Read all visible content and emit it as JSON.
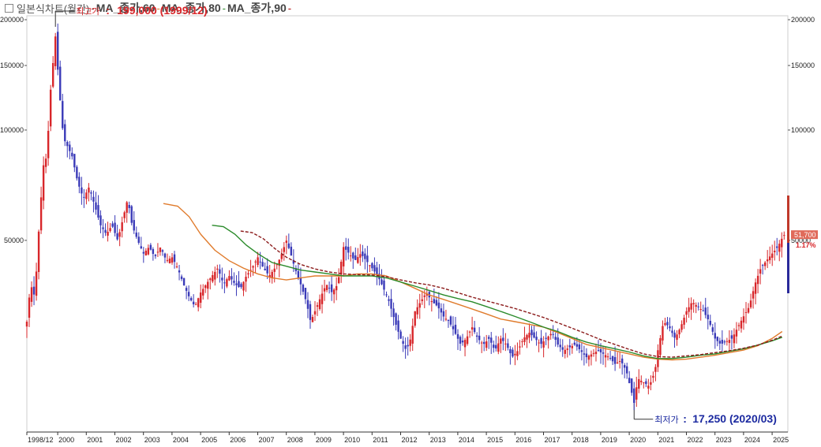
{
  "legend": {
    "title": "일본식차트(월간)",
    "items": [
      {
        "label": "MA_종가,60",
        "color": "#e07b2c"
      },
      {
        "label": "MA_종가,80",
        "color": "#2a8a2a"
      },
      {
        "label": "MA_종가,90",
        "color": "#8b1a1a"
      }
    ],
    "trailing_color": "#b00000"
  },
  "colors": {
    "up": "#d8262a",
    "down": "#3a3ab8",
    "marker": "#b00000",
    "panel": "#e8e8e8"
  },
  "chart_data": {
    "type": "candlestick",
    "title": "일본식차트(월간)",
    "y_scale": "log",
    "ylim": [
      15000,
      205000
    ],
    "y_ticks": [
      50000,
      100000,
      150000,
      200000
    ],
    "x_ticks": [
      "1998/12",
      "2000",
      "2001",
      "2002",
      "2003",
      "2004",
      "2005",
      "2006",
      "2007",
      "2008",
      "2009",
      "2010",
      "2011",
      "2012",
      "2013",
      "2014",
      "2015",
      "2016",
      "2017",
      "2018",
      "2019",
      "2020",
      "2021",
      "2022",
      "2023",
      "2024",
      "2025"
    ],
    "x_range": [
      1998.92,
      2025.55
    ],
    "last_price_label": "51,700",
    "change_label": "1.17%",
    "annotations": {
      "high": {
        "label": "최고가",
        "value": "199,000 (1999/12)",
        "x": 1999.92,
        "y": 199000
      },
      "low": {
        "label": "최저가",
        "value": "17,250 (2020/03)",
        "x": 2020.17,
        "y": 17250
      }
    },
    "price_path": [
      [
        1998.92,
        30000
      ],
      [
        1999.05,
        38000
      ],
      [
        1999.2,
        35000
      ],
      [
        1999.35,
        55000
      ],
      [
        1999.5,
        80000
      ],
      [
        1999.62,
        85000
      ],
      [
        1999.75,
        128000
      ],
      [
        1999.92,
        180000
      ],
      [
        2000.05,
        130000
      ],
      [
        2000.2,
        95000
      ],
      [
        2000.35,
        90000
      ],
      [
        2000.5,
        85000
      ],
      [
        2000.7,
        72000
      ],
      [
        2000.9,
        65000
      ],
      [
        2001.1,
        70000
      ],
      [
        2001.3,
        62000
      ],
      [
        2001.5,
        55000
      ],
      [
        2001.7,
        52000
      ],
      [
        2001.9,
        55000
      ],
      [
        2002.1,
        50000
      ],
      [
        2002.3,
        58000
      ],
      [
        2002.45,
        65000
      ],
      [
        2002.6,
        55000
      ],
      [
        2002.8,
        50000
      ],
      [
        2003.0,
        46000
      ],
      [
        2003.2,
        48000
      ],
      [
        2003.4,
        45000
      ],
      [
        2003.6,
        48000
      ],
      [
        2003.8,
        44000
      ],
      [
        2004.0,
        45000
      ],
      [
        2004.2,
        42000
      ],
      [
        2004.4,
        38000
      ],
      [
        2004.6,
        35000
      ],
      [
        2004.8,
        33000
      ],
      [
        2005.0,
        36000
      ],
      [
        2005.2,
        38000
      ],
      [
        2005.4,
        40000
      ],
      [
        2005.6,
        42000
      ],
      [
        2005.8,
        38000
      ],
      [
        2006.0,
        40000
      ],
      [
        2006.2,
        38000
      ],
      [
        2006.4,
        37000
      ],
      [
        2006.6,
        40000
      ],
      [
        2006.8,
        42000
      ],
      [
        2007.0,
        45000
      ],
      [
        2007.2,
        42000
      ],
      [
        2007.4,
        40000
      ],
      [
        2007.6,
        42000
      ],
      [
        2007.8,
        45000
      ],
      [
        2008.0,
        50000
      ],
      [
        2008.15,
        46000
      ],
      [
        2008.3,
        42000
      ],
      [
        2008.5,
        38000
      ],
      [
        2008.7,
        34000
      ],
      [
        2008.85,
        30000
      ],
      [
        2009.0,
        32000
      ],
      [
        2009.2,
        35000
      ],
      [
        2009.4,
        38000
      ],
      [
        2009.6,
        36000
      ],
      [
        2009.8,
        38000
      ],
      [
        2010.0,
        48000
      ],
      [
        2010.2,
        46000
      ],
      [
        2010.4,
        44000
      ],
      [
        2010.6,
        46000
      ],
      [
        2010.8,
        44000
      ],
      [
        2011.0,
        42000
      ],
      [
        2011.2,
        40000
      ],
      [
        2011.4,
        37000
      ],
      [
        2011.6,
        34000
      ],
      [
        2011.8,
        30000
      ],
      [
        2012.0,
        27000
      ],
      [
        2012.2,
        25000
      ],
      [
        2012.35,
        27000
      ],
      [
        2012.5,
        32000
      ],
      [
        2012.7,
        34000
      ],
      [
        2012.9,
        36000
      ],
      [
        2013.1,
        34000
      ],
      [
        2013.3,
        33000
      ],
      [
        2013.5,
        31000
      ],
      [
        2013.7,
        30000
      ],
      [
        2013.9,
        28000
      ],
      [
        2014.1,
        26000
      ],
      [
        2014.3,
        27000
      ],
      [
        2014.5,
        29000
      ],
      [
        2014.7,
        27000
      ],
      [
        2014.9,
        26000
      ],
      [
        2015.1,
        27000
      ],
      [
        2015.3,
        25000
      ],
      [
        2015.5,
        27000
      ],
      [
        2015.7,
        26000
      ],
      [
        2015.9,
        24000
      ],
      [
        2016.1,
        25000
      ],
      [
        2016.3,
        27000
      ],
      [
        2016.5,
        28000
      ],
      [
        2016.7,
        27000
      ],
      [
        2016.9,
        26000
      ],
      [
        2017.1,
        27000
      ],
      [
        2017.3,
        28000
      ],
      [
        2017.5,
        26000
      ],
      [
        2017.7,
        25000
      ],
      [
        2017.9,
        25500
      ],
      [
        2018.1,
        26000
      ],
      [
        2018.3,
        25000
      ],
      [
        2018.5,
        24000
      ],
      [
        2018.7,
        24500
      ],
      [
        2018.9,
        25000
      ],
      [
        2019.1,
        24500
      ],
      [
        2019.3,
        24000
      ],
      [
        2019.5,
        23000
      ],
      [
        2019.7,
        23500
      ],
      [
        2019.9,
        22000
      ],
      [
        2020.1,
        19000
      ],
      [
        2020.17,
        18000
      ],
      [
        2020.3,
        21000
      ],
      [
        2020.5,
        20500
      ],
      [
        2020.7,
        20000
      ],
      [
        2020.9,
        22000
      ],
      [
        2021.0,
        25000
      ],
      [
        2021.2,
        30000
      ],
      [
        2021.4,
        29000
      ],
      [
        2021.6,
        27000
      ],
      [
        2021.8,
        29000
      ],
      [
        2022.0,
        32000
      ],
      [
        2022.2,
        34000
      ],
      [
        2022.4,
        33000
      ],
      [
        2022.6,
        32000
      ],
      [
        2022.8,
        30000
      ],
      [
        2023.0,
        27000
      ],
      [
        2023.2,
        26000
      ],
      [
        2023.4,
        26500
      ],
      [
        2023.6,
        27000
      ],
      [
        2023.8,
        29000
      ],
      [
        2024.0,
        31000
      ],
      [
        2024.2,
        33000
      ],
      [
        2024.4,
        38000
      ],
      [
        2024.6,
        42000
      ],
      [
        2024.8,
        44000
      ],
      [
        2025.0,
        46000
      ],
      [
        2025.2,
        48000
      ],
      [
        2025.4,
        51700
      ]
    ],
    "series": [
      {
        "name": "MA_종가,60",
        "color": "#e07b2c",
        "dash": false,
        "points": [
          [
            2003.7,
            63000
          ],
          [
            2004.2,
            62000
          ],
          [
            2004.6,
            58000
          ],
          [
            2005.0,
            52000
          ],
          [
            2005.5,
            47000
          ],
          [
            2006.0,
            44000
          ],
          [
            2006.5,
            42000
          ],
          [
            2007.0,
            40500
          ],
          [
            2007.5,
            39500
          ],
          [
            2008.0,
            39000
          ],
          [
            2008.5,
            39500
          ],
          [
            2009.0,
            40000
          ],
          [
            2009.5,
            40000
          ],
          [
            2010.0,
            40000
          ],
          [
            2010.5,
            40500
          ],
          [
            2011.0,
            40500
          ],
          [
            2011.5,
            40000
          ],
          [
            2012.0,
            38500
          ],
          [
            2012.5,
            37000
          ],
          [
            2013.0,
            35500
          ],
          [
            2013.5,
            34500
          ],
          [
            2014.0,
            33500
          ],
          [
            2014.5,
            32500
          ],
          [
            2015.0,
            31500
          ],
          [
            2015.5,
            30500
          ],
          [
            2016.0,
            30000
          ],
          [
            2016.5,
            29500
          ],
          [
            2017.0,
            29000
          ],
          [
            2017.5,
            28000
          ],
          [
            2018.0,
            27000
          ],
          [
            2018.5,
            26000
          ],
          [
            2019.0,
            25500
          ],
          [
            2019.5,
            25000
          ],
          [
            2020.0,
            24500
          ],
          [
            2020.5,
            24000
          ],
          [
            2021.0,
            23700
          ],
          [
            2021.5,
            23600
          ],
          [
            2022.0,
            23700
          ],
          [
            2022.5,
            24000
          ],
          [
            2023.0,
            24300
          ],
          [
            2023.5,
            24700
          ],
          [
            2024.0,
            25100
          ],
          [
            2024.5,
            25800
          ],
          [
            2025.0,
            27000
          ],
          [
            2025.35,
            28200
          ]
        ]
      },
      {
        "name": "MA_종가,80",
        "color": "#2a8a2a",
        "dash": false,
        "points": [
          [
            2005.4,
            55000
          ],
          [
            2005.8,
            54500
          ],
          [
            2006.2,
            52000
          ],
          [
            2006.6,
            48500
          ],
          [
            2007.0,
            46000
          ],
          [
            2007.5,
            43500
          ],
          [
            2008.0,
            42500
          ],
          [
            2008.5,
            41500
          ],
          [
            2009.0,
            41000
          ],
          [
            2009.5,
            40500
          ],
          [
            2010.0,
            40000
          ],
          [
            2010.5,
            40000
          ],
          [
            2011.0,
            40000
          ],
          [
            2011.5,
            39500
          ],
          [
            2012.0,
            38500
          ],
          [
            2012.5,
            37500
          ],
          [
            2013.0,
            36500
          ],
          [
            2013.5,
            35500
          ],
          [
            2014.0,
            34700
          ],
          [
            2014.5,
            34000
          ],
          [
            2015.0,
            33000
          ],
          [
            2015.5,
            32000
          ],
          [
            2016.0,
            31000
          ],
          [
            2016.5,
            30000
          ],
          [
            2017.0,
            29000
          ],
          [
            2017.5,
            28200
          ],
          [
            2018.0,
            27200
          ],
          [
            2018.5,
            26400
          ],
          [
            2019.0,
            25800
          ],
          [
            2019.5,
            25300
          ],
          [
            2020.0,
            24800
          ],
          [
            2020.5,
            24200
          ],
          [
            2021.0,
            23800
          ],
          [
            2021.5,
            23800
          ],
          [
            2022.0,
            24000
          ],
          [
            2022.5,
            24300
          ],
          [
            2023.0,
            24500
          ],
          [
            2023.5,
            24900
          ],
          [
            2024.0,
            25300
          ],
          [
            2024.5,
            25900
          ],
          [
            2025.0,
            26600
          ],
          [
            2025.35,
            27200
          ]
        ]
      },
      {
        "name": "MA_종가,90",
        "color": "#8b1a1a",
        "dash": true,
        "points": [
          [
            2006.4,
            53000
          ],
          [
            2006.8,
            52500
          ],
          [
            2007.2,
            50500
          ],
          [
            2007.6,
            47500
          ],
          [
            2008.0,
            45000
          ],
          [
            2008.5,
            43000
          ],
          [
            2009.0,
            41800
          ],
          [
            2009.5,
            41000
          ],
          [
            2010.0,
            40500
          ],
          [
            2010.5,
            40300
          ],
          [
            2011.0,
            40200
          ],
          [
            2011.5,
            39800
          ],
          [
            2012.0,
            39000
          ],
          [
            2012.5,
            38300
          ],
          [
            2013.0,
            37800
          ],
          [
            2013.5,
            37000
          ],
          [
            2014.0,
            36000
          ],
          [
            2014.5,
            35000
          ],
          [
            2015.0,
            34200
          ],
          [
            2015.5,
            33400
          ],
          [
            2016.0,
            32600
          ],
          [
            2016.5,
            31700
          ],
          [
            2017.0,
            30800
          ],
          [
            2017.5,
            29800
          ],
          [
            2018.0,
            28800
          ],
          [
            2018.5,
            27800
          ],
          [
            2019.0,
            26800
          ],
          [
            2019.5,
            26000
          ],
          [
            2020.0,
            25200
          ],
          [
            2020.5,
            24500
          ],
          [
            2021.0,
            24100
          ],
          [
            2021.5,
            24000
          ],
          [
            2022.0,
            24200
          ],
          [
            2022.5,
            24400
          ],
          [
            2023.0,
            24700
          ],
          [
            2023.5,
            25000
          ],
          [
            2024.0,
            25400
          ],
          [
            2024.5,
            25900
          ],
          [
            2025.0,
            26700
          ],
          [
            2025.35,
            27400
          ]
        ]
      }
    ]
  }
}
